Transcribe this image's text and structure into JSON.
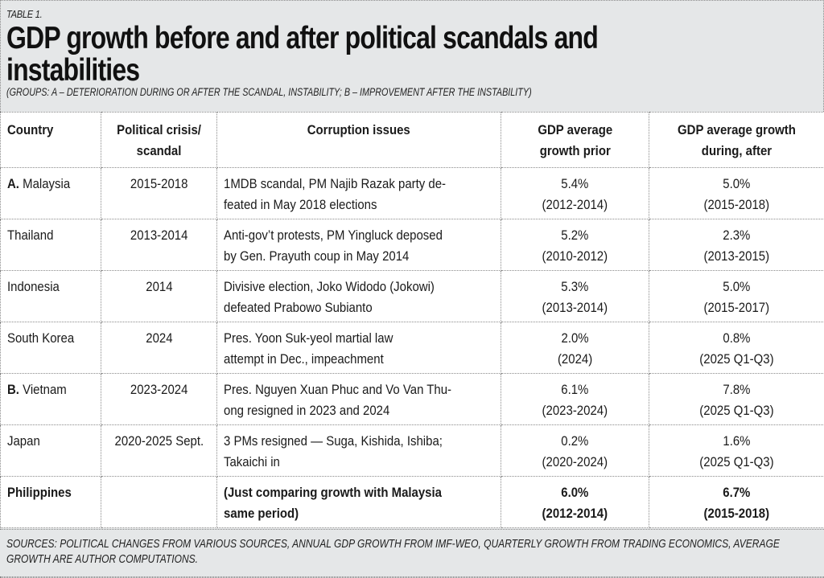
{
  "header": {
    "table_label": "TABLE 1.",
    "title": "GDP growth before and after political scandals and instabilities",
    "subtitle": "(GROUPS: A – DETERIORATION DURING OR AFTER THE SCANDAL, INSTABILITY; B – IMPROVEMENT AFTER THE INSTABILITY)"
  },
  "table": {
    "columns": [
      "Country",
      "Political crisis/ scandal",
      "Corruption issues",
      "GDP average growth prior",
      "GDP average growth during, after"
    ],
    "columns_lines": [
      [
        "Country"
      ],
      [
        "Political crisis/",
        "scandal"
      ],
      [
        "Corruption issues"
      ],
      [
        "GDP average",
        "growth prior"
      ],
      [
        "GDP average growth",
        "during, after"
      ]
    ],
    "rows": [
      {
        "group": "A.",
        "country": "Malaysia",
        "crisis": "2015-2018",
        "issues": [
          "1MDB scandal, PM Najib Razak party de-",
          "feated in May 2018 elections"
        ],
        "prior_value": "5.4%",
        "prior_period": "(2012-2014)",
        "after_value": "5.0%",
        "after_period": "(2015-2018)"
      },
      {
        "group": "",
        "country": "Thailand",
        "crisis": "2013-2014",
        "issues": [
          "Anti-gov’t protests, PM Yingluck deposed",
          "by Gen. Prayuth coup in May 2014"
        ],
        "prior_value": "5.2%",
        "prior_period": "(2010-2012)",
        "after_value": "2.3%",
        "after_period": "(2013-2015)"
      },
      {
        "group": "",
        "country": "Indonesia",
        "crisis": "2014",
        "issues": [
          "Divisive election, Joko Widodo (Jokowi)",
          "defeated Prabowo Subianto"
        ],
        "prior_value": "5.3%",
        "prior_period": "(2013-2014)",
        "after_value": "5.0%",
        "after_period": "(2015-2017)"
      },
      {
        "group": "",
        "country": "South Korea",
        "crisis": "2024",
        "issues": [
          "Pres. Yoon Suk-yeol martial law",
          "attempt in Dec., impeachment"
        ],
        "prior_value": "2.0%",
        "prior_period": "(2024)",
        "after_value": "0.8%",
        "after_period": "(2025 Q1-Q3)"
      },
      {
        "group": "B.",
        "country": "Vietnam",
        "crisis": "2023-2024",
        "issues": [
          "Pres. Nguyen Xuan Phuc and Vo Van Thu-",
          "ong resigned in 2023 and 2024"
        ],
        "prior_value": "6.1%",
        "prior_period": "(2023-2024)",
        "after_value": "7.8%",
        "after_period": "(2025 Q1-Q3)"
      },
      {
        "group": "",
        "country": "Japan",
        "crisis": "2020-2025 Sept.",
        "issues": [
          "3 PMs resigned — Suga, Kishida, Ishiba;",
          "Takaichi in"
        ],
        "prior_value": "0.2%",
        "prior_period": "(2020-2024)",
        "after_value": "1.6%",
        "after_period": "(2025 Q1-Q3)"
      },
      {
        "group": "",
        "country": "Philippines",
        "crisis": "",
        "issues": [
          "(Just comparing growth with Malaysia",
          "same period)"
        ],
        "prior_value": "6.0%",
        "prior_period": "(2012-2014)",
        "after_value": "6.7%",
        "after_period": "(2015-2018)"
      }
    ]
  },
  "footer": {
    "sources": "SOURCES: POLITICAL CHANGES FROM VARIOUS SOURCES, ANNUAL GDP GROWTH FROM IMF-WEO, QUARTERLY GROWTH FROM TRADING ECONOMICS, AVERAGE GROWTH ARE AUTHOR COMPUTATIONS."
  }
}
